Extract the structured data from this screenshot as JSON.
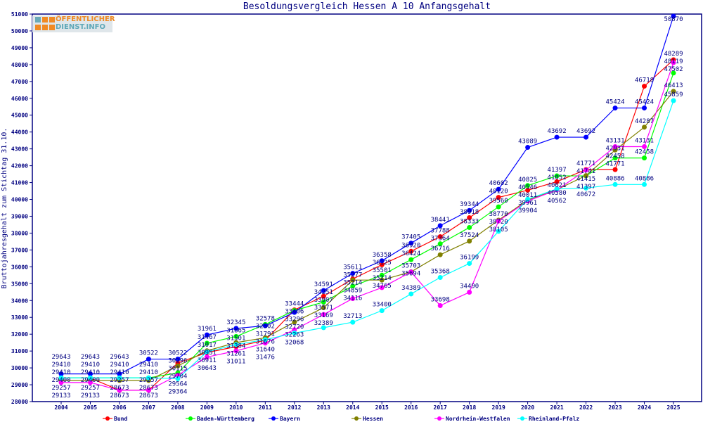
{
  "logo": {
    "line1": "ÖFFENTLICHER",
    "line2": "DIENST.INFO"
  },
  "chart_data": {
    "type": "line",
    "title": "Besoldungsvergleich Hessen A 10 Anfangsgehalt",
    "xlabel": "",
    "ylabel": "Bruttojahresgehalt zum Stichtag 31.10.",
    "ylim": [
      28000,
      51000
    ],
    "yticks": [
      28000,
      29000,
      30000,
      31000,
      32000,
      33000,
      34000,
      35000,
      36000,
      37000,
      38000,
      39000,
      40000,
      41000,
      42000,
      43000,
      44000,
      45000,
      46000,
      47000,
      48000,
      49000,
      50000,
      51000
    ],
    "x": [
      2004,
      2005,
      2006,
      2007,
      2008,
      2009,
      2010,
      2011,
      2012,
      2013,
      2014,
      2015,
      2016,
      2017,
      2018,
      2019,
      2020,
      2021,
      2022,
      2023,
      2024,
      2025
    ],
    "grid": false,
    "legend": "bottom",
    "series": [
      {
        "name": "Bund",
        "color": "#ff0000",
        "values": [
          29400,
          29400,
          28673,
          28673,
          30296,
          30911,
          31261,
          31640,
          33444,
          34251,
          35277,
          36125,
          36920,
          37788,
          38918,
          40120,
          40546,
          41052,
          41771,
          41771,
          46718,
          48289
        ]
      },
      {
        "name": "Baden-Württemberg",
        "color": "#00ff00",
        "values": [
          29410,
          29410,
          29410,
          29410,
          29704,
          31467,
          31865,
          32578,
          33406,
          33907,
          34859,
          35501,
          36424,
          37364,
          38333,
          39560,
          40825,
          41397,
          41397,
          42458,
          42458,
          47502
        ]
      },
      {
        "name": "Bayern",
        "color": "#0000ff",
        "values": [
          29643,
          29643,
          29643,
          30522,
          30522,
          31961,
          32345,
          32502,
          33296,
          34591,
          35611,
          36358,
          37405,
          38441,
          39344,
          40602,
          43089,
          43692,
          43692,
          45424,
          45424,
          50870
        ]
      },
      {
        "name": "Hessen",
        "color": "#808000",
        "values": [
          29257,
          29257,
          29257,
          29257,
          30115,
          31017,
          31501,
          31791,
          32720,
          33571,
          35214,
          35214,
          35703,
          36716,
          37524,
          38770,
          39961,
          40580,
          41415,
          42931,
          44287,
          46413
        ]
      },
      {
        "name": "Nordrhein-Westfalen",
        "color": "#ff00ff",
        "values": [
          29133,
          29133,
          28673,
          28673,
          29564,
          30643,
          31011,
          31476,
          32263,
          33169,
          34116,
          34765,
          35694,
          33698,
          34490,
          38720,
          39904,
          40562,
          41741,
          43131,
          43131,
          48119
        ]
      },
      {
        "name": "Rheinland-Pfalz",
        "color": "#00ffff",
        "values": [
          29410,
          29410,
          29410,
          29410,
          29364,
          30951,
          31384,
          31676,
          32068,
          32389,
          32713,
          33400,
          34389,
          35368,
          36199,
          38105,
          40011,
          40621,
          40672,
          40886,
          40886,
          45859
        ]
      }
    ]
  }
}
